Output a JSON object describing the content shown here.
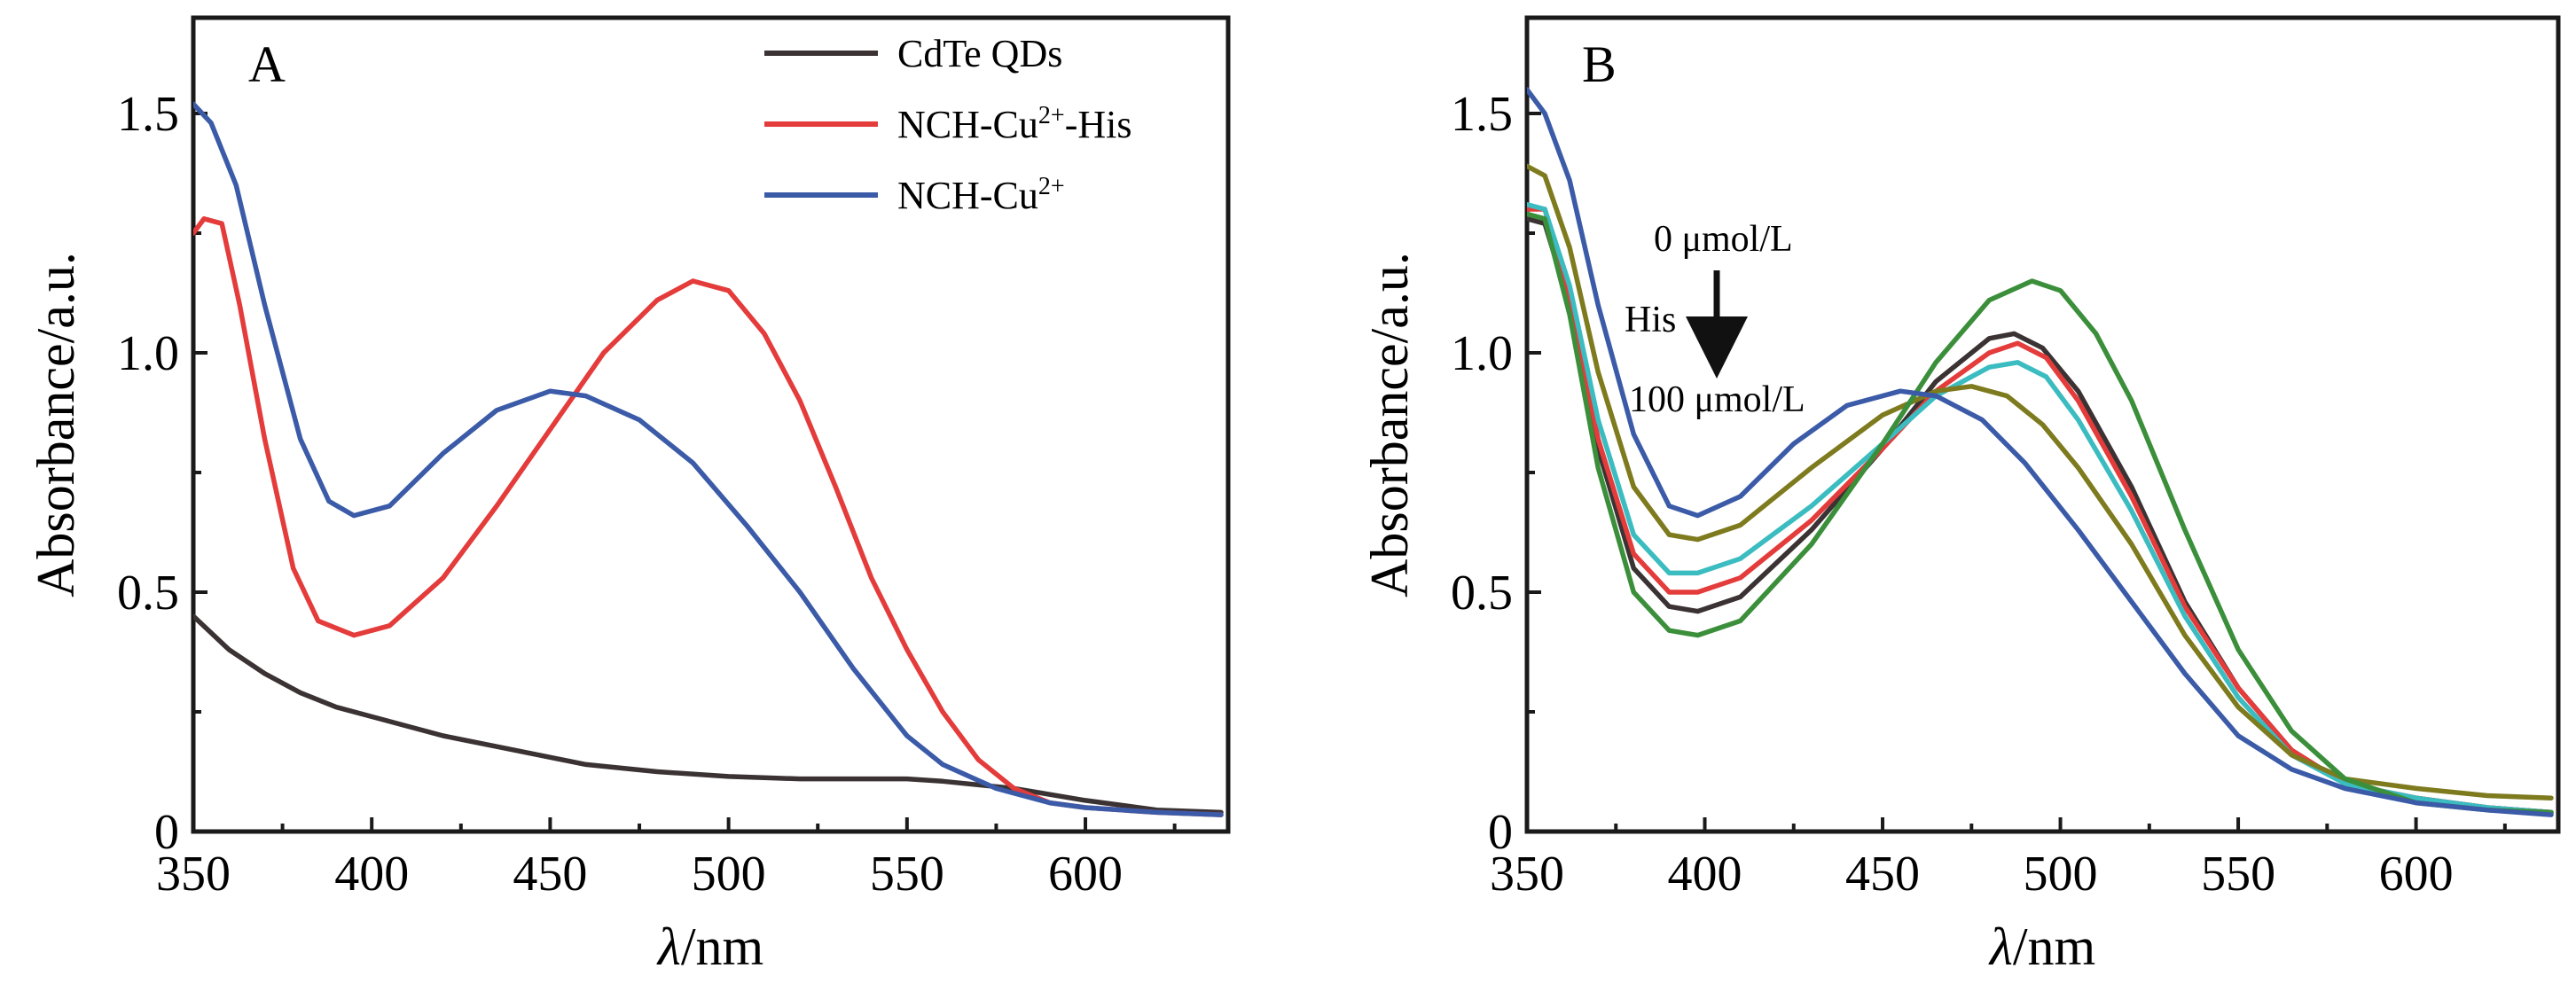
{
  "colors": {
    "cdte": "#3b3333",
    "nch_cu_his": "#e43b3b",
    "nch_cu": "#3b5ba8",
    "b_black": "#3b3333",
    "b_red": "#e43b3b",
    "b_cyan": "#3bbcc0",
    "b_olive": "#7e7a1e",
    "b_green": "#3b8f3b",
    "b_blue": "#3b5ba8"
  },
  "chart_data": [
    {
      "type": "line",
      "panel_label": "A",
      "xlabel_italic": "λ",
      "xlabel_rest": "/nm",
      "ylabel": "Absorbance/a.u.",
      "xlim": [
        350,
        640
      ],
      "ylim": [
        0,
        1.7
      ],
      "xticks": [
        350,
        400,
        450,
        500,
        550,
        600
      ],
      "xtick_labels": [
        "350",
        "400",
        "450",
        "500",
        "550",
        "600"
      ],
      "yticks": [
        0,
        0.5,
        1.0,
        1.5
      ],
      "ytick_labels": [
        "0",
        "0.5",
        "1.0",
        "1.5"
      ],
      "legend_position": "top-right",
      "legend": [
        {
          "base": "CdTe QDs",
          "sup": "",
          "tail": ""
        },
        {
          "base": "NCH-Cu",
          "sup": "2+",
          "tail": "-His"
        },
        {
          "base": "NCH-Cu",
          "sup": "2+",
          "tail": ""
        }
      ],
      "series": [
        {
          "color_key": "cdte",
          "points": [
            [
              350,
              0.45
            ],
            [
              360,
              0.38
            ],
            [
              370,
              0.33
            ],
            [
              380,
              0.29
            ],
            [
              390,
              0.26
            ],
            [
              400,
              0.24
            ],
            [
              420,
              0.2
            ],
            [
              440,
              0.17
            ],
            [
              460,
              0.14
            ],
            [
              480,
              0.125
            ],
            [
              500,
              0.115
            ],
            [
              520,
              0.11
            ],
            [
              540,
              0.11
            ],
            [
              550,
              0.11
            ],
            [
              560,
              0.105
            ],
            [
              580,
              0.09
            ],
            [
              600,
              0.065
            ],
            [
              620,
              0.045
            ],
            [
              638,
              0.04
            ]
          ]
        },
        {
          "color_key": "nch_cu_his",
          "points": [
            [
              350,
              1.25
            ],
            [
              353,
              1.28
            ],
            [
              358,
              1.27
            ],
            [
              363,
              1.1
            ],
            [
              370,
              0.82
            ],
            [
              378,
              0.55
            ],
            [
              385,
              0.44
            ],
            [
              395,
              0.41
            ],
            [
              405,
              0.43
            ],
            [
              420,
              0.53
            ],
            [
              435,
              0.68
            ],
            [
              450,
              0.84
            ],
            [
              465,
              1.0
            ],
            [
              480,
              1.11
            ],
            [
              490,
              1.15
            ],
            [
              500,
              1.13
            ],
            [
              510,
              1.04
            ],
            [
              520,
              0.9
            ],
            [
              530,
              0.72
            ],
            [
              540,
              0.53
            ],
            [
              550,
              0.38
            ],
            [
              560,
              0.25
            ],
            [
              570,
              0.15
            ],
            [
              580,
              0.09
            ],
            [
              590,
              0.06
            ],
            [
              600,
              0.05
            ],
            [
              620,
              0.04
            ],
            [
              638,
              0.035
            ]
          ]
        },
        {
          "color_key": "nch_cu",
          "points": [
            [
              350,
              1.52
            ],
            [
              355,
              1.48
            ],
            [
              362,
              1.35
            ],
            [
              370,
              1.1
            ],
            [
              380,
              0.82
            ],
            [
              388,
              0.69
            ],
            [
              395,
              0.66
            ],
            [
              405,
              0.68
            ],
            [
              420,
              0.79
            ],
            [
              435,
              0.88
            ],
            [
              450,
              0.92
            ],
            [
              460,
              0.91
            ],
            [
              475,
              0.86
            ],
            [
              490,
              0.77
            ],
            [
              505,
              0.64
            ],
            [
              520,
              0.5
            ],
            [
              535,
              0.34
            ],
            [
              550,
              0.2
            ],
            [
              560,
              0.14
            ],
            [
              575,
              0.09
            ],
            [
              590,
              0.06
            ],
            [
              600,
              0.05
            ],
            [
              620,
              0.04
            ],
            [
              638,
              0.035
            ]
          ]
        }
      ]
    },
    {
      "type": "line",
      "panel_label": "B",
      "xlabel_italic": "λ",
      "xlabel_rest": "/nm",
      "ylabel": "Absorbance/a.u.",
      "xlim": [
        350,
        640
      ],
      "ylim": [
        0,
        1.7
      ],
      "xticks": [
        350,
        400,
        450,
        500,
        550,
        600
      ],
      "xtick_labels": [
        "350",
        "400",
        "450",
        "500",
        "550",
        "600"
      ],
      "yticks": [
        0,
        0.5,
        1.0,
        1.5
      ],
      "ytick_labels": [
        "0",
        "0.5",
        "1.0",
        "1.5"
      ],
      "annotations": {
        "start": "0 μmol/L",
        "mid": "His",
        "end": "100 μmol/L"
      },
      "series": [
        {
          "color_key": "b_black",
          "points": [
            [
              350,
              1.28
            ],
            [
              355,
              1.27
            ],
            [
              362,
              1.1
            ],
            [
              370,
              0.8
            ],
            [
              380,
              0.55
            ],
            [
              390,
              0.47
            ],
            [
              398,
              0.46
            ],
            [
              410,
              0.49
            ],
            [
              430,
              0.63
            ],
            [
              450,
              0.8
            ],
            [
              465,
              0.94
            ],
            [
              480,
              1.03
            ],
            [
              487,
              1.04
            ],
            [
              495,
              1.01
            ],
            [
              505,
              0.92
            ],
            [
              520,
              0.72
            ],
            [
              535,
              0.48
            ],
            [
              550,
              0.3
            ],
            [
              565,
              0.17
            ],
            [
              580,
              0.1
            ],
            [
              600,
              0.07
            ],
            [
              620,
              0.05
            ],
            [
              638,
              0.04
            ]
          ]
        },
        {
          "color_key": "b_red",
          "points": [
            [
              350,
              1.3
            ],
            [
              355,
              1.3
            ],
            [
              362,
              1.12
            ],
            [
              370,
              0.82
            ],
            [
              380,
              0.58
            ],
            [
              390,
              0.5
            ],
            [
              398,
              0.5
            ],
            [
              410,
              0.53
            ],
            [
              430,
              0.65
            ],
            [
              450,
              0.8
            ],
            [
              465,
              0.92
            ],
            [
              480,
              1.0
            ],
            [
              488,
              1.02
            ],
            [
              496,
              0.99
            ],
            [
              505,
              0.9
            ],
            [
              520,
              0.7
            ],
            [
              535,
              0.47
            ],
            [
              550,
              0.3
            ],
            [
              565,
              0.17
            ],
            [
              580,
              0.1
            ],
            [
              600,
              0.07
            ],
            [
              620,
              0.05
            ],
            [
              638,
              0.04
            ]
          ]
        },
        {
          "color_key": "b_cyan",
          "points": [
            [
              350,
              1.31
            ],
            [
              355,
              1.3
            ],
            [
              362,
              1.14
            ],
            [
              370,
              0.86
            ],
            [
              380,
              0.62
            ],
            [
              390,
              0.54
            ],
            [
              398,
              0.54
            ],
            [
              410,
              0.57
            ],
            [
              430,
              0.68
            ],
            [
              450,
              0.81
            ],
            [
              465,
              0.91
            ],
            [
              480,
              0.97
            ],
            [
              488,
              0.98
            ],
            [
              496,
              0.95
            ],
            [
              505,
              0.86
            ],
            [
              520,
              0.67
            ],
            [
              535,
              0.45
            ],
            [
              550,
              0.28
            ],
            [
              565,
              0.16
            ],
            [
              580,
              0.1
            ],
            [
              600,
              0.07
            ],
            [
              620,
              0.05
            ],
            [
              638,
              0.04
            ]
          ]
        },
        {
          "color_key": "b_olive",
          "points": [
            [
              350,
              1.39
            ],
            [
              355,
              1.37
            ],
            [
              362,
              1.22
            ],
            [
              370,
              0.96
            ],
            [
              380,
              0.72
            ],
            [
              390,
              0.62
            ],
            [
              398,
              0.61
            ],
            [
              410,
              0.64
            ],
            [
              430,
              0.76
            ],
            [
              450,
              0.87
            ],
            [
              465,
              0.92
            ],
            [
              475,
              0.93
            ],
            [
              485,
              0.91
            ],
            [
              495,
              0.85
            ],
            [
              505,
              0.76
            ],
            [
              520,
              0.6
            ],
            [
              535,
              0.41
            ],
            [
              550,
              0.26
            ],
            [
              565,
              0.16
            ],
            [
              580,
              0.11
            ],
            [
              600,
              0.09
            ],
            [
              620,
              0.075
            ],
            [
              638,
              0.07
            ]
          ]
        },
        {
          "color_key": "b_green",
          "points": [
            [
              350,
              1.29
            ],
            [
              355,
              1.28
            ],
            [
              362,
              1.08
            ],
            [
              370,
              0.76
            ],
            [
              380,
              0.5
            ],
            [
              390,
              0.42
            ],
            [
              398,
              0.41
            ],
            [
              410,
              0.44
            ],
            [
              430,
              0.6
            ],
            [
              450,
              0.81
            ],
            [
              465,
              0.98
            ],
            [
              480,
              1.11
            ],
            [
              492,
              1.15
            ],
            [
              500,
              1.13
            ],
            [
              510,
              1.04
            ],
            [
              520,
              0.9
            ],
            [
              535,
              0.63
            ],
            [
              550,
              0.38
            ],
            [
              565,
              0.21
            ],
            [
              580,
              0.11
            ],
            [
              600,
              0.06
            ],
            [
              620,
              0.045
            ],
            [
              638,
              0.04
            ]
          ]
        },
        {
          "color_key": "b_blue",
          "points": [
            [
              350,
              1.55
            ],
            [
              355,
              1.5
            ],
            [
              362,
              1.36
            ],
            [
              370,
              1.1
            ],
            [
              380,
              0.83
            ],
            [
              390,
              0.68
            ],
            [
              398,
              0.66
            ],
            [
              410,
              0.7
            ],
            [
              425,
              0.81
            ],
            [
              440,
              0.89
            ],
            [
              455,
              0.92
            ],
            [
              465,
              0.91
            ],
            [
              478,
              0.86
            ],
            [
              490,
              0.77
            ],
            [
              505,
              0.63
            ],
            [
              520,
              0.48
            ],
            [
              535,
              0.33
            ],
            [
              550,
              0.2
            ],
            [
              565,
              0.13
            ],
            [
              580,
              0.09
            ],
            [
              600,
              0.06
            ],
            [
              620,
              0.045
            ],
            [
              638,
              0.035
            ]
          ]
        }
      ]
    }
  ]
}
